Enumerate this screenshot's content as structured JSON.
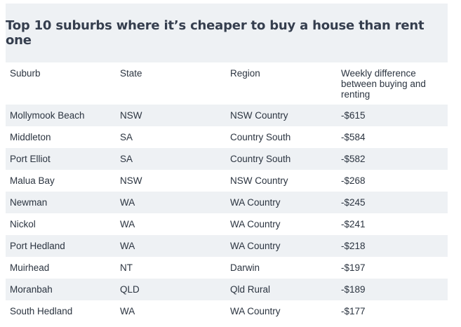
{
  "title": "Top 10 suburbs where it’s cheaper to buy a house than rent one",
  "columns": [
    "Suburb",
    "State",
    "Region",
    "Weekly difference between buying and renting"
  ],
  "rows": [
    {
      "suburb": "Mollymook Beach",
      "state": "NSW",
      "region": "NSW Country",
      "diff": "-$615"
    },
    {
      "suburb": "Middleton",
      "state": "SA",
      "region": "Country South",
      "diff": "-$584"
    },
    {
      "suburb": "Port Elliot",
      "state": "SA",
      "region": "Country South",
      "diff": "-$582"
    },
    {
      "suburb": "Malua Bay",
      "state": "NSW",
      "region": "NSW Country",
      "diff": "-$268"
    },
    {
      "suburb": "Newman",
      "state": "WA",
      "region": "WA Country",
      "diff": "-$245"
    },
    {
      "suburb": "Nickol",
      "state": "WA",
      "region": "WA Country",
      "diff": "-$241"
    },
    {
      "suburb": "Port Hedland",
      "state": "WA",
      "region": "WA Country",
      "diff": "-$218"
    },
    {
      "suburb": "Muirhead",
      "state": "NT",
      "region": "Darwin",
      "diff": "-$197"
    },
    {
      "suburb": "Moranbah",
      "state": "QLD",
      "region": "Qld Rural",
      "diff": "-$189"
    },
    {
      "suburb": "South Hedland",
      "state": "WA",
      "region": "WA Country",
      "diff": "-$177"
    }
  ],
  "colors": {
    "band": "#eef1f4",
    "title": "#353e4e",
    "text": "#2b3440"
  }
}
